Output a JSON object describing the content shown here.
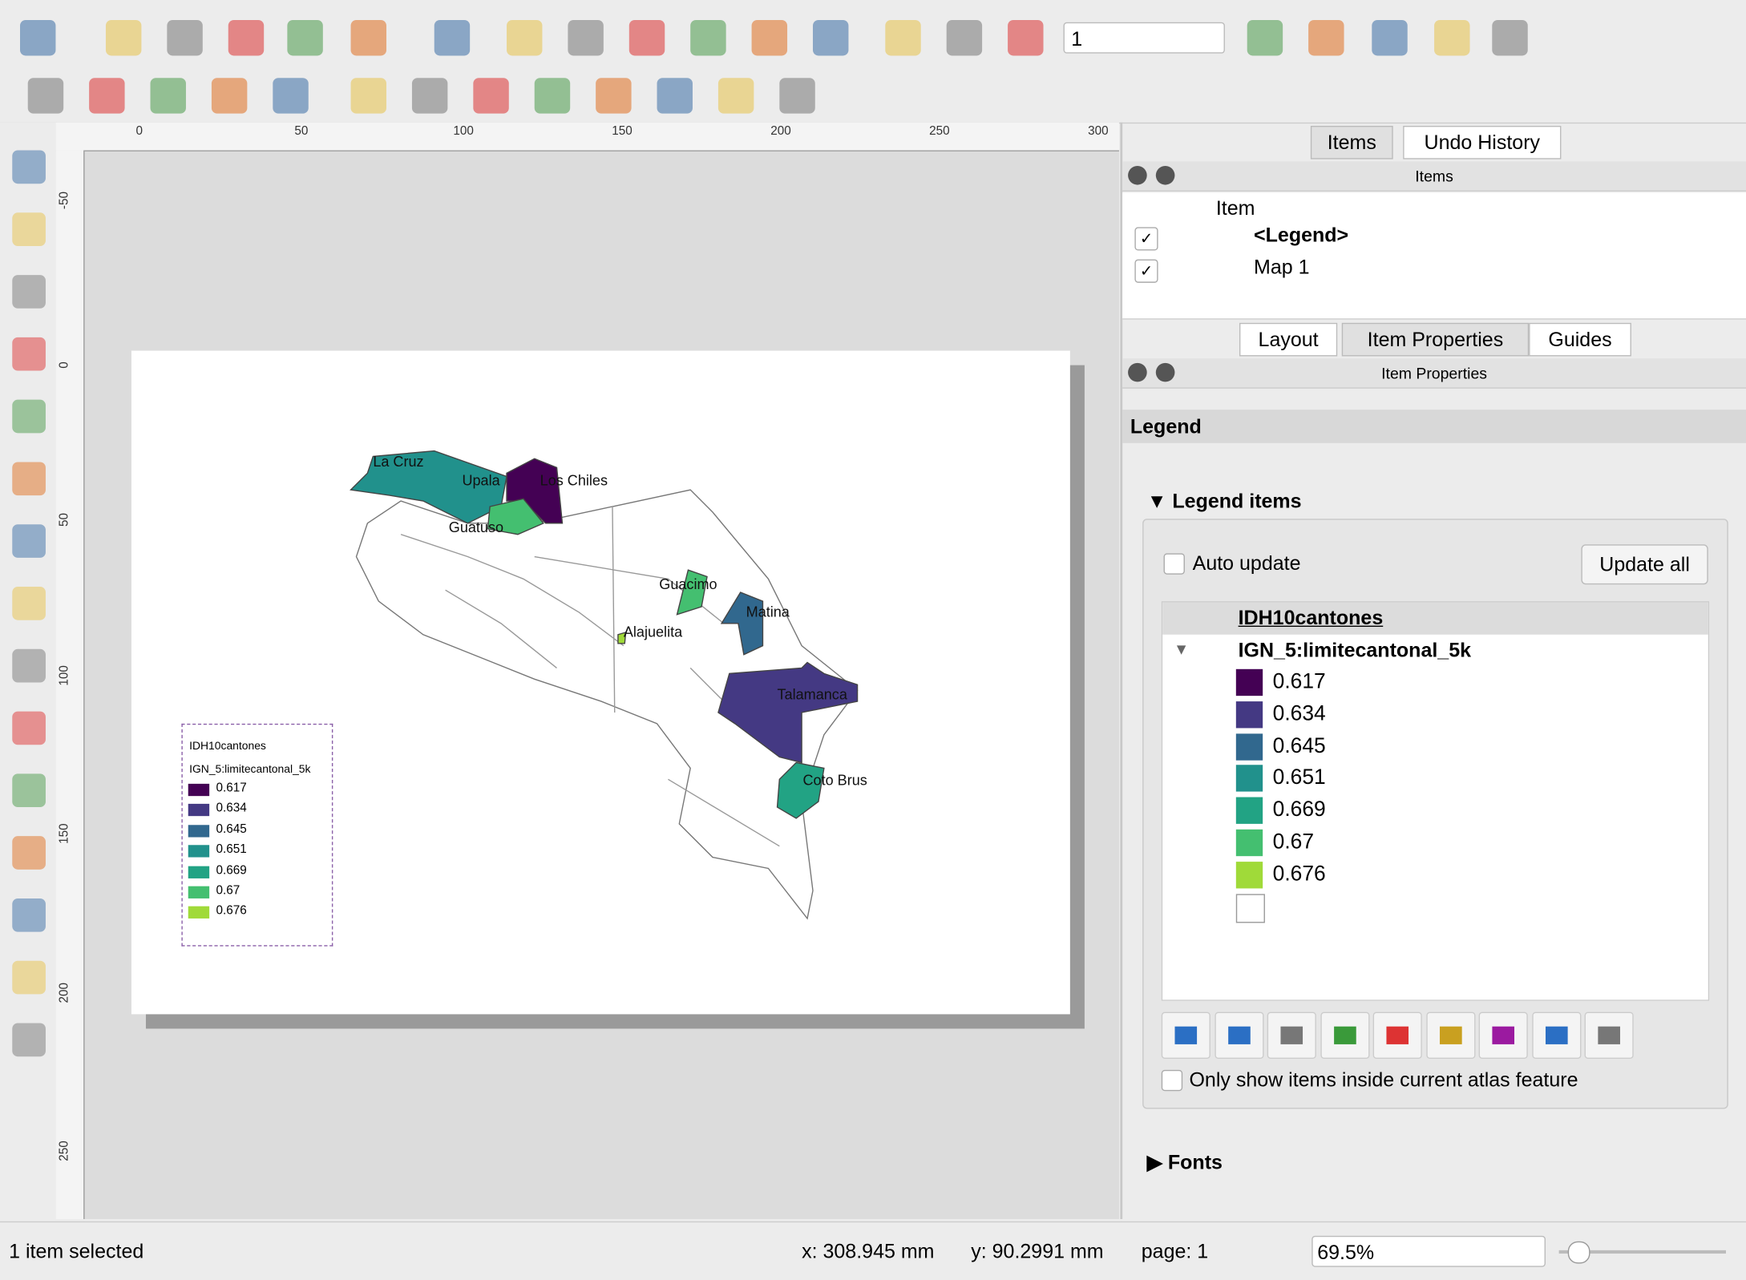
{
  "toolbar": {
    "page_input": "1"
  },
  "ruler": {
    "top_labels": [
      "0",
      "50",
      "100",
      "150",
      "200",
      "250",
      "300"
    ],
    "left_labels": [
      "-50",
      "0",
      "50",
      "100",
      "150",
      "200",
      "250"
    ]
  },
  "map": {
    "labels": [
      "La Cruz",
      "Upala",
      "Los Chiles",
      "Guatuso",
      "Guacimo",
      "Matina",
      "Alajuelita",
      "Talamanca",
      "Coto Brus"
    ]
  },
  "legend": {
    "title": "IDH10cantones",
    "layer": "IGN_5:limitecantonal_5k",
    "classes": [
      {
        "label": "0.617",
        "color": "#440154"
      },
      {
        "label": "0.634",
        "color": "#443983"
      },
      {
        "label": "0.645",
        "color": "#31688e"
      },
      {
        "label": "0.651",
        "color": "#21918c"
      },
      {
        "label": "0.669",
        "color": "#22a384"
      },
      {
        "label": "0.67",
        "color": "#44bf70"
      },
      {
        "label": "0.676",
        "color": "#a0da39"
      }
    ]
  },
  "items_panel": {
    "tabs": [
      "Items",
      "Undo History"
    ],
    "title": "Items",
    "column": "Item",
    "rows": [
      "<Legend>",
      "Map 1"
    ]
  },
  "properties_panel": {
    "tabs": [
      "Layout",
      "Item Properties",
      "Guides"
    ],
    "title": "Item Properties",
    "section": "Legend",
    "group": "Legend items",
    "auto_update": "Auto update",
    "update_all": "Update all",
    "atlas_option": "Only show items inside current atlas feature",
    "collapsed": "Fonts"
  },
  "status": {
    "selection": "1 item selected",
    "x": "x: 308.945 mm",
    "y": "y: 90.2991 mm",
    "page": "page: 1",
    "zoom": "69.5%"
  }
}
